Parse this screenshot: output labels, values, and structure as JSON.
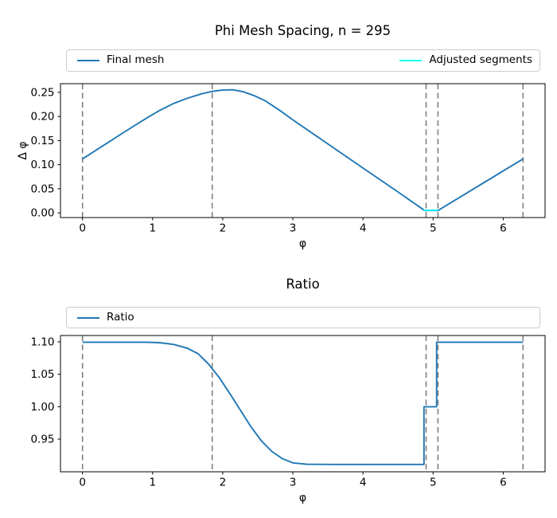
{
  "figure": {
    "background": "#ffffff",
    "text_color": "#000000"
  },
  "chart_data": [
    {
      "type": "line",
      "title": "Phi Mesh Spacing, n = 295",
      "xlabel": "φ",
      "ylabel": "Δ φ",
      "grid": false,
      "legend_position": "above axes, full width, 2 columns",
      "xlim": [
        -0.314,
        6.597
      ],
      "ylim": [
        -0.0097,
        0.268
      ],
      "xticks": [
        [
          0,
          "0"
        ],
        [
          1,
          "1"
        ],
        [
          2,
          "2"
        ],
        [
          3,
          "3"
        ],
        [
          4,
          "4"
        ],
        [
          5,
          "5"
        ],
        [
          6,
          "6"
        ]
      ],
      "yticks": [
        [
          0.0,
          "0.00"
        ],
        [
          0.05,
          "0.05"
        ],
        [
          0.1,
          "0.10"
        ],
        [
          0.15,
          "0.15"
        ],
        [
          0.2,
          "0.20"
        ],
        [
          0.25,
          "0.25"
        ]
      ],
      "vlines": [
        0,
        1.85,
        4.9,
        5.07,
        6.283
      ],
      "vline_color": "#7f7f7f",
      "vline_style": "dashed",
      "series": [
        {
          "name": "Final mesh",
          "color": "#1f77b4",
          "points": [
            [
              0,
              0.112
            ],
            [
              0.3,
              0.14
            ],
            [
              0.6,
              0.168
            ],
            [
              0.9,
              0.1955
            ],
            [
              1.1,
              0.2125
            ],
            [
              1.3,
              0.227
            ],
            [
              1.5,
              0.238
            ],
            [
              1.7,
              0.247
            ],
            [
              1.85,
              0.252
            ],
            [
              2.0,
              0.255
            ],
            [
              2.15,
              0.2552
            ],
            [
              2.3,
              0.251
            ],
            [
              2.45,
              0.243
            ],
            [
              2.6,
              0.233
            ],
            [
              2.8,
              0.214
            ],
            [
              3.0,
              0.193
            ],
            [
              3.5,
              0.143
            ],
            [
              4.0,
              0.093
            ],
            [
              4.5,
              0.0433
            ],
            [
              4.88,
              0.0048
            ],
            [
              5.07,
              0.0048
            ],
            [
              5.5,
              0.0428
            ],
            [
              6.0,
              0.087
            ],
            [
              6.283,
              0.112
            ]
          ]
        },
        {
          "name": "Adjusted segments",
          "color": "#00ffff",
          "points": [
            [
              4.86,
              0.0055
            ],
            [
              5.07,
              0.0055
            ]
          ]
        }
      ]
    },
    {
      "type": "line",
      "title": "Ratio",
      "xlabel": "φ",
      "ylabel": "",
      "grid": false,
      "legend_position": "above axes, full width, 1 entry",
      "xlim": [
        -0.314,
        6.597
      ],
      "ylim": [
        0.8997,
        1.1098
      ],
      "xticks": [
        [
          0,
          "0"
        ],
        [
          1,
          "1"
        ],
        [
          2,
          "2"
        ],
        [
          3,
          "3"
        ],
        [
          4,
          "4"
        ],
        [
          5,
          "5"
        ],
        [
          6,
          "6"
        ]
      ],
      "yticks": [
        [
          0.95,
          "0.95"
        ],
        [
          1.0,
          "1.00"
        ],
        [
          1.05,
          "1.05"
        ],
        [
          1.1,
          "1.10"
        ]
      ],
      "vlines": [
        0,
        1.85,
        4.9,
        5.07,
        6.283
      ],
      "vline_color": "#7f7f7f",
      "vline_style": "dashed",
      "series": [
        {
          "name": "Ratio",
          "color": "#1f77b4",
          "points": [
            [
              0,
              1.0995
            ],
            [
              0.9,
              1.0995
            ],
            [
              1.1,
              1.0987
            ],
            [
              1.3,
              1.096
            ],
            [
              1.5,
              1.09
            ],
            [
              1.65,
              1.0815
            ],
            [
              1.8,
              1.0655
            ],
            [
              1.95,
              1.045
            ],
            [
              2.1,
              1.0205
            ],
            [
              2.25,
              0.995
            ],
            [
              2.4,
              0.9695
            ],
            [
              2.55,
              0.9475
            ],
            [
              2.7,
              0.931
            ],
            [
              2.85,
              0.92
            ],
            [
              3.0,
              0.9135
            ],
            [
              3.2,
              0.9112
            ],
            [
              3.6,
              0.911
            ],
            [
              4.87,
              0.911
            ],
            [
              4.87,
              1.0
            ],
            [
              5.05,
              1.0
            ],
            [
              5.05,
              1.0995
            ],
            [
              6.283,
              1.0995
            ]
          ]
        }
      ]
    }
  ]
}
